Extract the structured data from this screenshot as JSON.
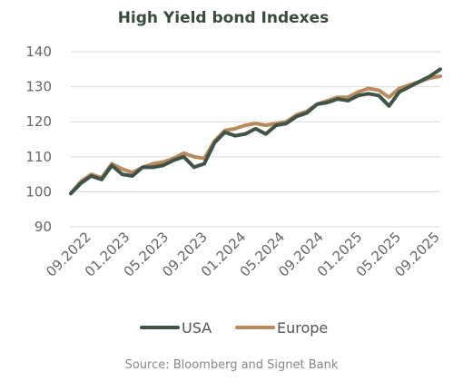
{
  "chart_data": {
    "type": "line",
    "title": "High Yield bond Indexes",
    "xlabel": "",
    "ylabel": "",
    "ylim": [
      90,
      140
    ],
    "y_ticks": [
      90,
      100,
      110,
      120,
      130,
      140
    ],
    "x_tick_labels": [
      "09.2022",
      "01.2023",
      "05.2023",
      "09.2023",
      "01.2024",
      "05.2024",
      "09.2024",
      "01.2025",
      "05.2025",
      "09.2025"
    ],
    "grid": "horizontal",
    "legend_position": "bottom",
    "source": "Source: Bloomberg and Signet Bank",
    "x": [
      "09.2022",
      "10.2022",
      "11.2022",
      "12.2022",
      "01.2023",
      "02.2023",
      "03.2023",
      "04.2023",
      "05.2023",
      "06.2023",
      "07.2023",
      "08.2023",
      "09.2023",
      "10.2023",
      "11.2023",
      "12.2023",
      "01.2024",
      "02.2024",
      "03.2024",
      "04.2024",
      "05.2024",
      "06.2024",
      "07.2024",
      "08.2024",
      "09.2024",
      "10.2024",
      "11.2024",
      "12.2024",
      "01.2025",
      "02.2025",
      "03.2025",
      "04.2025",
      "05.2025",
      "06.2025",
      "07.2025",
      "08.2025",
      "09.2025"
    ],
    "series": [
      {
        "name": "USA",
        "color": "#3f5446",
        "values": [
          99.5,
          102.5,
          104.5,
          103.5,
          107.5,
          105,
          104.5,
          107,
          107,
          107.5,
          109,
          110,
          107,
          108,
          114,
          117,
          116,
          116.5,
          118,
          116.5,
          119,
          119.5,
          121.5,
          122.5,
          125,
          125.5,
          126.5,
          126,
          127.5,
          128,
          127.5,
          124.5,
          128.5,
          130,
          131.5,
          133,
          135
        ]
      },
      {
        "name": "Europe",
        "color": "#b88a5e",
        "values": [
          99.5,
          103,
          105,
          104,
          108,
          106.5,
          105.5,
          107,
          108,
          108.5,
          109.5,
          111,
          110,
          109.5,
          114.5,
          117.5,
          118,
          119,
          119.5,
          119,
          119.5,
          120,
          122,
          123,
          125,
          126,
          127,
          127,
          128.5,
          129.5,
          129,
          127,
          129.5,
          130.5,
          131.5,
          132.5,
          133
        ]
      }
    ]
  }
}
